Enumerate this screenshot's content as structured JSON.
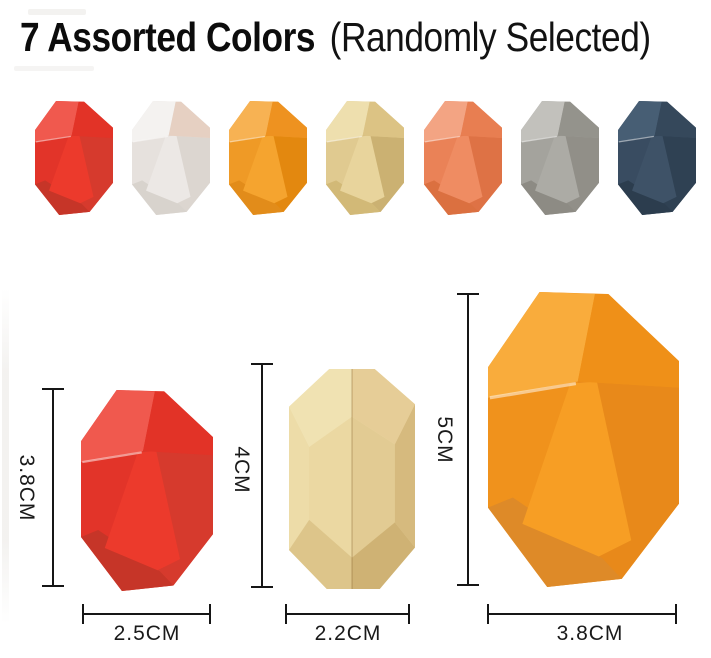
{
  "title": {
    "bold": "7 Assorted Colors",
    "regular": "(Randomly Selected)"
  },
  "palettes": {
    "red": {
      "light": "#F0594E",
      "mid": "#E23429",
      "main": "#EC3A2C",
      "tr": "#E23327",
      "dark": "#D63A2D",
      "bottom": "#C63528"
    },
    "white": {
      "light": "#F4F2F0",
      "mid": "#E6E1DD",
      "main": "#ECE8E5",
      "tr": "#E6D0C2",
      "dark": "#DCD6D0",
      "bottom": "#D8D3CD"
    },
    "orange": {
      "light": "#F7B253",
      "mid": "#EF9A26",
      "main": "#F5A42F",
      "tr": "#EE9220",
      "dark": "#E3880F",
      "bottom": "#E28C1A"
    },
    "beige": {
      "light": "#EEDFAE",
      "mid": "#E0CA90",
      "main": "#E8D49C",
      "tr": "#DCC384",
      "dark": "#CBB172",
      "bottom": "#D2B977"
    },
    "coral": {
      "light": "#F3A483",
      "mid": "#EA8257",
      "main": "#EF8C62",
      "tr": "#E87E51",
      "dark": "#DE7245",
      "bottom": "#DB7040"
    },
    "gray": {
      "light": "#C2C1BC",
      "mid": "#A4A39D",
      "main": "#ACABA5",
      "tr": "#94938C",
      "dark": "#918F88",
      "bottom": "#8D8B84"
    },
    "navy": {
      "light": "#475E74",
      "mid": "#394C61",
      "main": "#3E5267",
      "tr": "#35485B",
      "dark": "#2F4153",
      "bottom": "#2C3D4E"
    },
    "beige_large": {
      "light": "#F0E2B2",
      "tr": "#E6CD97",
      "edgeL": "#EDDCA8",
      "edgeR": "#D6BA7E",
      "faceL": "#EBD8A2",
      "faceR": "#E2CB93",
      "botL": "#DDC58A",
      "botR": "#CFB274"
    },
    "orange_large": {
      "light": "#F9AC3C",
      "mid": "#F0921C",
      "main": "#F79E24",
      "tr": "#EF9018",
      "dark": "#E8891A",
      "bottom": "#DE8A28"
    }
  },
  "swatches": [
    {
      "name": "red",
      "palette": "red"
    },
    {
      "name": "white",
      "palette": "white"
    },
    {
      "name": "orange",
      "palette": "orange"
    },
    {
      "name": "beige",
      "palette": "beige"
    },
    {
      "name": "coral",
      "palette": "coral"
    },
    {
      "name": "gray",
      "palette": "gray"
    },
    {
      "name": "navy",
      "palette": "navy"
    }
  ],
  "size_chart": {
    "items": [
      {
        "name": "red",
        "palette": "red",
        "variant": "A",
        "height_label": "3.8CM",
        "width_label": "2.5CM"
      },
      {
        "name": "beige",
        "palette": "beige_large",
        "variant": "B",
        "height_label": "4CM",
        "width_label": "2.2CM"
      },
      {
        "name": "orange",
        "palette": "orange_large",
        "variant": "A",
        "height_label": "5CM",
        "width_label": "3.8CM"
      }
    ]
  }
}
